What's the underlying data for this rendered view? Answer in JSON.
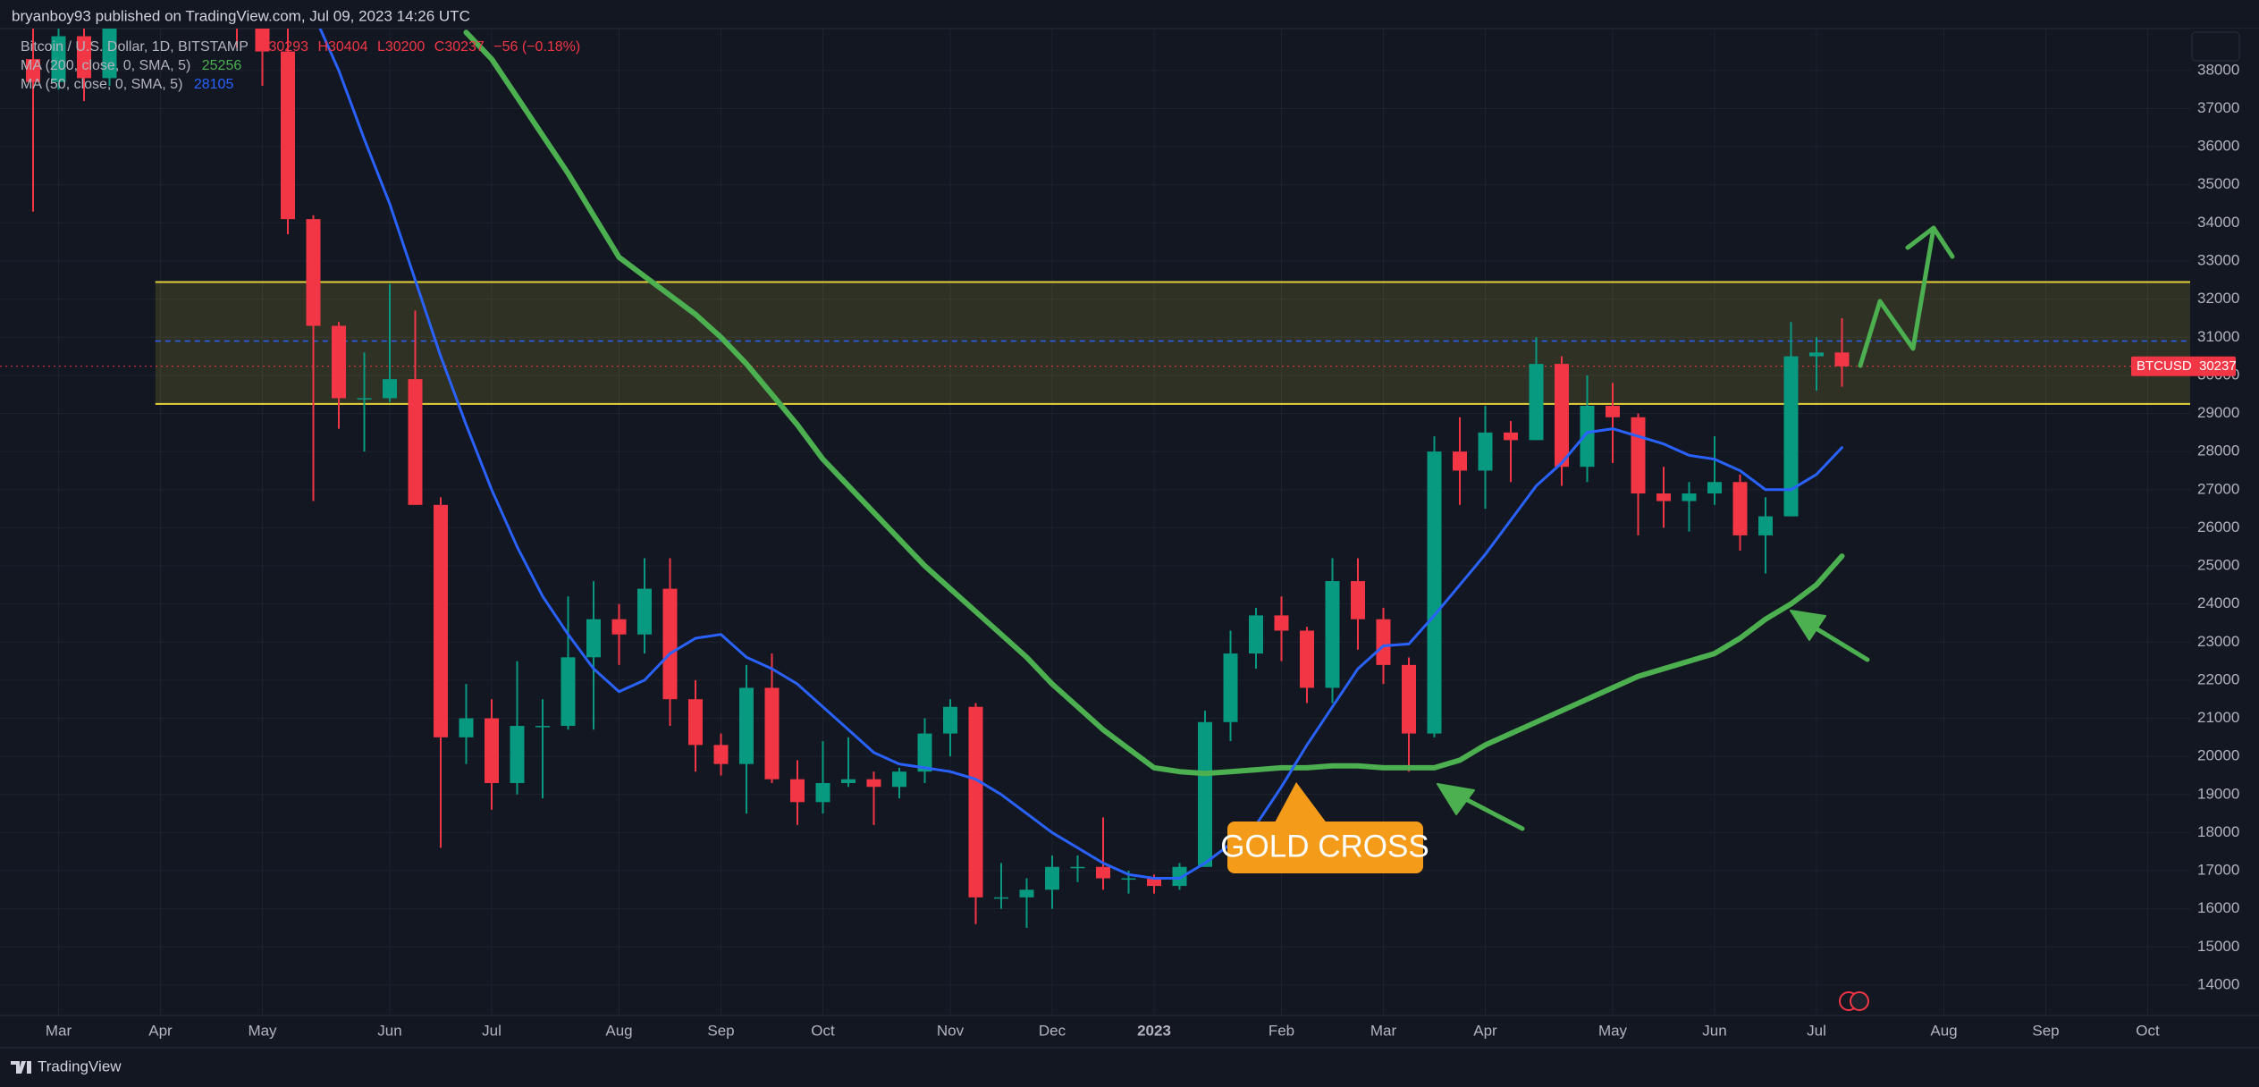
{
  "header": {
    "published": "bryanboy93 published on TradingView.com, Jul 09, 2023 14:26 UTC",
    "symbol": "Bitcoin / U.S. Dollar, 1D, BITSTAMP",
    "ohlc": [
      "O30293",
      "H30404",
      "L30200",
      "C30237",
      "−56 (−0.18%)"
    ],
    "indicators": [
      {
        "label": "MA (200, close, 0, SMA, 5)",
        "value": 25256,
        "color": "#4caf50"
      },
      {
        "label": "MA (50, close, 0, SMA, 5)",
        "value": 28105,
        "color": "#2962ff"
      }
    ]
  },
  "chart_data": {
    "type": "candlestick",
    "categories": [
      null,
      "Mar",
      null,
      null,
      null,
      "Apr",
      null,
      null,
      null,
      "May",
      null,
      null,
      null,
      null,
      "Jun",
      null,
      null,
      null,
      "Jul",
      null,
      null,
      null,
      null,
      "Aug",
      null,
      null,
      null,
      "Sep",
      null,
      null,
      null,
      "Oct",
      null,
      null,
      null,
      null,
      "Nov",
      null,
      null,
      null,
      "Dec",
      null,
      null,
      null,
      "2023",
      null,
      null,
      null,
      null,
      "Feb",
      null,
      null,
      null,
      "Mar",
      null,
      null,
      null,
      "Apr",
      null,
      null,
      null,
      null,
      "May",
      null,
      null,
      null,
      "Jun",
      null,
      null,
      null,
      "Jul",
      null,
      null,
      null,
      null,
      "Aug",
      null,
      null,
      null,
      "Sep",
      null,
      null,
      null,
      "Oct",
      null
    ],
    "ohlc": [
      [
        38300,
        39800,
        34300,
        37700
      ],
      [
        37700,
        45400,
        37500,
        38900
      ],
      [
        38900,
        42500,
        37200,
        37800
      ],
      [
        37800,
        42300,
        37600,
        41300
      ],
      [
        41300,
        44900,
        40500,
        44500
      ],
      [
        44500,
        48200,
        44200,
        46400
      ],
      [
        46400,
        47200,
        42100,
        42200
      ],
      [
        42200,
        42400,
        39200,
        39700
      ],
      [
        39700,
        42900,
        38600,
        39400
      ],
      [
        39400,
        40800,
        37600,
        38500
      ],
      [
        38500,
        40000,
        33700,
        34100
      ],
      [
        34100,
        34200,
        26700,
        31300
      ],
      [
        31300,
        31400,
        28600,
        29400
      ],
      [
        29400,
        30600,
        28000,
        29400
      ],
      [
        29400,
        32400,
        29300,
        29900
      ],
      [
        29900,
        31700,
        26600,
        26600
      ],
      [
        26600,
        26800,
        17600,
        20500
      ],
      [
        20500,
        21900,
        19800,
        21000
      ],
      [
        21000,
        21500,
        18600,
        19300
      ],
      [
        19300,
        22500,
        19000,
        20800
      ],
      [
        20800,
        21500,
        18900,
        20800
      ],
      [
        20800,
        24200,
        20700,
        22600
      ],
      [
        22600,
        24600,
        20700,
        23600
      ],
      [
        23600,
        24000,
        22400,
        23200
      ],
      [
        23200,
        25200,
        22700,
        24400
      ],
      [
        24400,
        25200,
        20800,
        21500
      ],
      [
        21500,
        22000,
        19600,
        20300
      ],
      [
        20300,
        20600,
        19500,
        19800
      ],
      [
        19800,
        22400,
        18500,
        21800
      ],
      [
        21800,
        22700,
        19300,
        19400
      ],
      [
        19400,
        19900,
        18200,
        18800
      ],
      [
        18800,
        20400,
        18500,
        19300
      ],
      [
        19300,
        20500,
        19200,
        19400
      ],
      [
        19400,
        19600,
        18200,
        19200
      ],
      [
        19200,
        19700,
        18900,
        19600
      ],
      [
        19600,
        21000,
        19300,
        20600
      ],
      [
        20600,
        21500,
        20000,
        21300
      ],
      [
        21300,
        21400,
        15600,
        16300
      ],
      [
        16300,
        17200,
        16000,
        16300
      ],
      [
        16300,
        16800,
        15500,
        16500
      ],
      [
        16500,
        17400,
        16000,
        17100
      ],
      [
        17100,
        17400,
        16700,
        17100
      ],
      [
        17100,
        18400,
        16500,
        16800
      ],
      [
        16800,
        17000,
        16400,
        16800
      ],
      [
        16800,
        16900,
        16400,
        16600
      ],
      [
        16600,
        17200,
        16500,
        17100
      ],
      [
        17100,
        21200,
        17100,
        20900
      ],
      [
        20900,
        23300,
        20400,
        22700
      ],
      [
        22700,
        23900,
        22300,
        23700
      ],
      [
        23700,
        24200,
        22500,
        23300
      ],
      [
        23300,
        23400,
        21400,
        21800
      ],
      [
        21800,
        25200,
        21400,
        24600
      ],
      [
        24600,
        25200,
        22800,
        23600
      ],
      [
        23600,
        23900,
        21900,
        22400
      ],
      [
        22400,
        22600,
        19600,
        20600
      ],
      [
        20600,
        28400,
        20500,
        28000
      ],
      [
        28000,
        28900,
        26600,
        27500
      ],
      [
        27500,
        29200,
        26500,
        28500
      ],
      [
        28500,
        28800,
        27200,
        28300
      ],
      [
        28300,
        31000,
        28300,
        30300
      ],
      [
        30300,
        30500,
        27100,
        27600
      ],
      [
        27600,
        30000,
        27200,
        29200
      ],
      [
        29200,
        29800,
        27700,
        28900
      ],
      [
        28900,
        29000,
        25800,
        26900
      ],
      [
        26900,
        27600,
        26000,
        26700
      ],
      [
        26700,
        27200,
        25900,
        26900
      ],
      [
        26900,
        28400,
        26600,
        27200
      ],
      [
        27200,
        27400,
        25400,
        25800
      ],
      [
        25800,
        26800,
        24800,
        26300
      ],
      [
        26300,
        31400,
        26300,
        30500
      ],
      [
        30500,
        31000,
        29600,
        30600
      ],
      [
        30600,
        31500,
        29700,
        30237
      ],
      null,
      null,
      null,
      null,
      null,
      null,
      null,
      null,
      null,
      null,
      null,
      null,
      null
    ],
    "up_color": "#089981",
    "down_color": "#f23645",
    "overlays": [
      {
        "color": "#4caf50",
        "width": 6,
        "values": [
          null,
          null,
          null,
          null,
          null,
          null,
          null,
          null,
          null,
          null,
          null,
          null,
          null,
          null,
          null,
          null,
          null,
          39000,
          38300,
          37300,
          36300,
          35300,
          34200,
          33100,
          32600,
          32100,
          31600,
          31000,
          30300,
          29500,
          28700,
          27800,
          27100,
          26400,
          25700,
          25000,
          24400,
          23800,
          23200,
          22600,
          21900,
          21300,
          20700,
          20200,
          19700,
          19600,
          19550,
          19600,
          19650,
          19700,
          19700,
          19750,
          19750,
          19700,
          19700,
          19700,
          19900,
          20300,
          20600,
          20900,
          21200,
          21500,
          21800,
          22100,
          22300,
          22500,
          22700,
          23100,
          23600,
          24000,
          24500,
          25256,
          null,
          null,
          null,
          null,
          null,
          null,
          null,
          null,
          null,
          null,
          null,
          null,
          null
        ]
      },
      {
        "color": "#2962ff",
        "width": 3,
        "values": [
          null,
          null,
          null,
          null,
          null,
          null,
          null,
          null,
          null,
          null,
          null,
          39500,
          38000,
          36200,
          34500,
          32500,
          30500,
          28700,
          27000,
          25500,
          24200,
          23200,
          22300,
          21700,
          22000,
          22700,
          23100,
          23200,
          22600,
          22300,
          21900,
          21300,
          20700,
          20100,
          19800,
          19700,
          19600,
          19400,
          19000,
          18500,
          18000,
          17600,
          17200,
          16900,
          16800,
          16800,
          17200,
          17700,
          18200,
          19200,
          20300,
          21300,
          22300,
          22900,
          22950,
          23700,
          24500,
          25300,
          26200,
          27100,
          27700,
          28500,
          28600,
          28400,
          28200,
          27900,
          27800,
          27500,
          27000,
          27000,
          27400,
          28105,
          null,
          null,
          null,
          null,
          null,
          null,
          null,
          null,
          null,
          null,
          null,
          null,
          null
        ]
      }
    ],
    "zone": {
      "low": 29250,
      "high": 32450,
      "mid": 30900,
      "color": "#e6d23a"
    },
    "last": {
      "label": "BTCUSD",
      "value": 30237,
      "color": "#f23645"
    },
    "annotation": "GOLD CROSS",
    "ylim": [
      13200,
      39100
    ],
    "yticks": [
      14000,
      15000,
      16000,
      17000,
      18000,
      19000,
      20000,
      21000,
      22000,
      23000,
      24000,
      25000,
      26000,
      27000,
      28000,
      29000,
      30000,
      31000,
      32000,
      33000,
      34000,
      35000,
      36000,
      37000,
      38000
    ],
    "grid": true
  },
  "footer": {
    "brand": "TradingView"
  }
}
